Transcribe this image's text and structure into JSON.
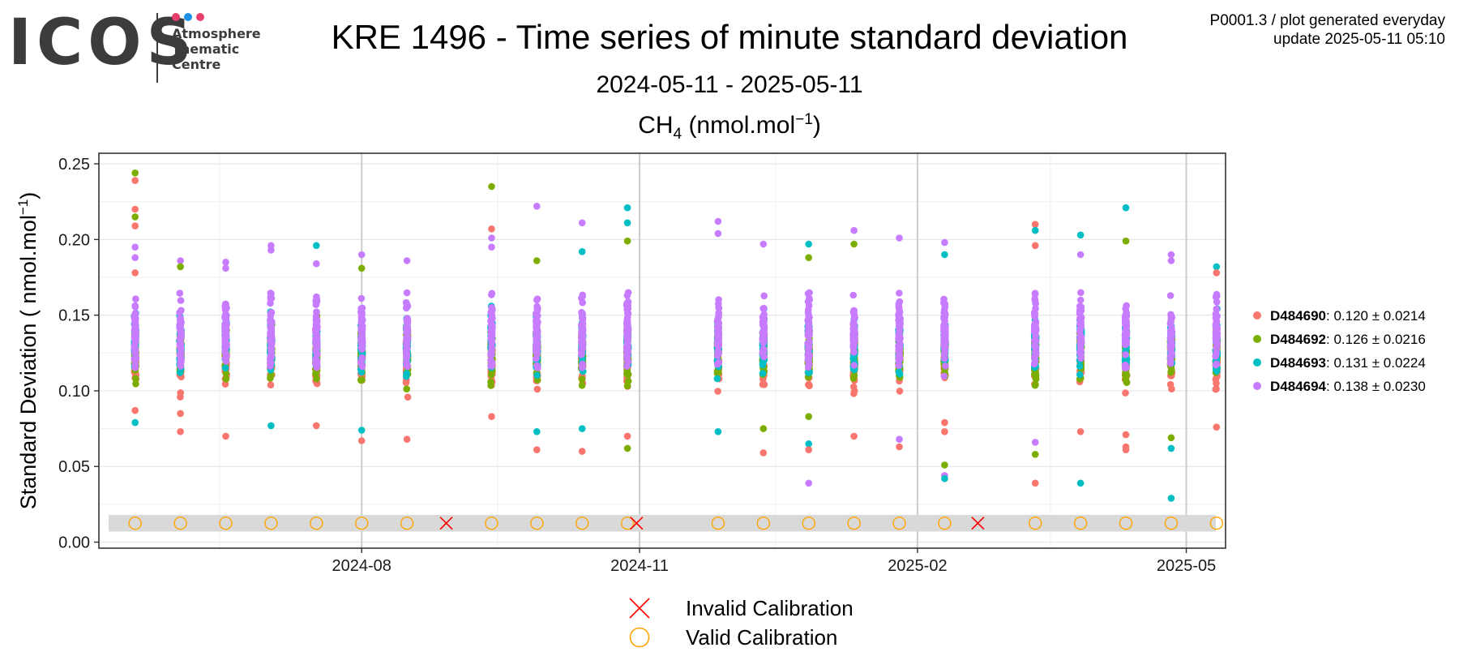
{
  "logo": {
    "text": "ICOS",
    "subtitle_lines": [
      "Atmosphere",
      "Thematic",
      "Centre"
    ],
    "dot_colors": [
      "#e83e6c",
      "#1e90e6",
      "#e83e6c"
    ]
  },
  "header": {
    "title": "KRE 1496 - Time series of minute standard deviation",
    "subtitle": "2024-05-11 - 2025-05-11",
    "gas_main": "CH",
    "gas_sub": "4",
    "gas_unit_pre": " (nmol.mol",
    "gas_unit_sup": "−1",
    "gas_unit_post": ")"
  },
  "meta": {
    "line1": "P0001.3 / plot generated everyday",
    "line2": "update  2025-05-11 05:10"
  },
  "chart_data": {
    "type": "scatter",
    "ylabel_pre": "Standard Deviation ( nmol.mol",
    "ylabel_sup": "−1",
    "ylabel_post": ")",
    "y_ticks": [
      "0.00",
      "0.05",
      "0.10",
      "0.15",
      "0.20",
      "0.25"
    ],
    "ylim": [
      -0.004,
      0.257
    ],
    "xlim": [
      "2024-05-06",
      "2025-05-14"
    ],
    "x_ticks": [
      {
        "date": "2024-08-01",
        "label": "2024-08"
      },
      {
        "date": "2024-11-01",
        "label": "2024-11"
      },
      {
        "date": "2025-02-01",
        "label": "2025-02"
      },
      {
        "date": "2025-05-01",
        "label": "2025-05"
      }
    ],
    "grid": true,
    "legend_position": "right",
    "series": [
      {
        "id": "D484690",
        "bold": "D484690",
        "stats": ": 0.120 ± 0.0214",
        "color": "#F8766D",
        "mean": 0.12,
        "sd": 0.0214
      },
      {
        "id": "D484692",
        "bold": "D484692",
        "stats": ": 0.126 ± 0.0216",
        "color": "#7CAE00",
        "mean": 0.126,
        "sd": 0.0216
      },
      {
        "id": "D484693",
        "bold": "D484693",
        "stats": ": 0.131 ± 0.0224",
        "color": "#00BFC4",
        "mean": 0.131,
        "sd": 0.0224
      },
      {
        "id": "D484694",
        "bold": "D484694",
        "stats": ": 0.138 ± 0.0230",
        "color": "#C77CFF",
        "mean": 0.138,
        "sd": 0.023
      }
    ],
    "clusters": [
      {
        "date": "2024-05-18",
        "min": 0.078,
        "max": 0.244,
        "outliers": [
          [
            0.244,
            1
          ],
          [
            0.239,
            0
          ],
          [
            0.22,
            0
          ],
          [
            0.215,
            1
          ],
          [
            0.209,
            0
          ],
          [
            0.195,
            3
          ],
          [
            0.188,
            3
          ],
          [
            0.178,
            0
          ],
          [
            0.087,
            0
          ],
          [
            0.079,
            2
          ]
        ]
      },
      {
        "date": "2024-06-02",
        "min": 0.073,
        "max": 0.186,
        "outliers": [
          [
            0.186,
            3
          ],
          [
            0.182,
            1
          ],
          [
            0.073,
            0
          ],
          [
            0.085,
            0
          ]
        ]
      },
      {
        "date": "2024-06-17",
        "min": 0.07,
        "max": 0.185,
        "outliers": [
          [
            0.185,
            3
          ],
          [
            0.181,
            3
          ],
          [
            0.07,
            0
          ]
        ]
      },
      {
        "date": "2024-07-02",
        "min": 0.077,
        "max": 0.196,
        "outliers": [
          [
            0.196,
            3
          ],
          [
            0.193,
            3
          ],
          [
            0.077,
            2
          ]
        ]
      },
      {
        "date": "2024-07-17",
        "min": 0.077,
        "max": 0.196,
        "outliers": [
          [
            0.196,
            2
          ],
          [
            0.184,
            3
          ],
          [
            0.077,
            0
          ]
        ]
      },
      {
        "date": "2024-08-01",
        "min": 0.067,
        "max": 0.19,
        "outliers": [
          [
            0.19,
            3
          ],
          [
            0.181,
            1
          ],
          [
            0.074,
            2
          ],
          [
            0.067,
            0
          ]
        ]
      },
      {
        "date": "2024-08-16",
        "min": 0.068,
        "max": 0.186,
        "outliers": [
          [
            0.186,
            3
          ],
          [
            0.068,
            0
          ]
        ]
      },
      {
        "date": "2024-09-13",
        "min": 0.082,
        "max": 0.235,
        "outliers": [
          [
            0.235,
            1
          ],
          [
            0.207,
            0
          ],
          [
            0.201,
            3
          ],
          [
            0.195,
            3
          ],
          [
            0.083,
            0
          ]
        ]
      },
      {
        "date": "2024-09-28",
        "min": 0.061,
        "max": 0.222,
        "outliers": [
          [
            0.222,
            3
          ],
          [
            0.186,
            1
          ],
          [
            0.073,
            2
          ],
          [
            0.061,
            0
          ]
        ]
      },
      {
        "date": "2024-10-13",
        "min": 0.06,
        "max": 0.211,
        "outliers": [
          [
            0.211,
            3
          ],
          [
            0.192,
            2
          ],
          [
            0.075,
            2
          ],
          [
            0.06,
            0
          ]
        ]
      },
      {
        "date": "2024-10-28",
        "min": 0.062,
        "max": 0.221,
        "outliers": [
          [
            0.221,
            2
          ],
          [
            0.211,
            2
          ],
          [
            0.199,
            1
          ],
          [
            0.07,
            0
          ],
          [
            0.062,
            1
          ]
        ]
      },
      {
        "date": "2024-11-27",
        "min": 0.073,
        "max": 0.212,
        "outliers": [
          [
            0.212,
            3
          ],
          [
            0.204,
            3
          ],
          [
            0.073,
            2
          ]
        ]
      },
      {
        "date": "2024-12-12",
        "min": 0.059,
        "max": 0.197,
        "outliers": [
          [
            0.197,
            3
          ],
          [
            0.075,
            1
          ],
          [
            0.059,
            0
          ]
        ]
      },
      {
        "date": "2024-12-27",
        "min": 0.039,
        "max": 0.197,
        "outliers": [
          [
            0.197,
            2
          ],
          [
            0.188,
            1
          ],
          [
            0.083,
            1
          ],
          [
            0.065,
            2
          ],
          [
            0.061,
            0
          ],
          [
            0.039,
            3
          ]
        ]
      },
      {
        "date": "2025-01-11",
        "min": 0.07,
        "max": 0.206,
        "outliers": [
          [
            0.206,
            3
          ],
          [
            0.197,
            1
          ],
          [
            0.07,
            0
          ]
        ]
      },
      {
        "date": "2025-01-26",
        "min": 0.063,
        "max": 0.201,
        "outliers": [
          [
            0.201,
            3
          ],
          [
            0.068,
            3
          ],
          [
            0.063,
            0
          ]
        ]
      },
      {
        "date": "2025-02-10",
        "min": 0.042,
        "max": 0.198,
        "outliers": [
          [
            0.198,
            3
          ],
          [
            0.19,
            2
          ],
          [
            0.079,
            0
          ],
          [
            0.073,
            0
          ],
          [
            0.051,
            1
          ],
          [
            0.044,
            3
          ],
          [
            0.042,
            2
          ]
        ]
      },
      {
        "date": "2025-03-12",
        "min": 0.039,
        "max": 0.21,
        "outliers": [
          [
            0.21,
            0
          ],
          [
            0.206,
            2
          ],
          [
            0.196,
            0
          ],
          [
            0.066,
            3
          ],
          [
            0.058,
            1
          ],
          [
            0.039,
            0
          ]
        ]
      },
      {
        "date": "2025-03-27",
        "min": 0.039,
        "max": 0.203,
        "outliers": [
          [
            0.203,
            2
          ],
          [
            0.19,
            3
          ],
          [
            0.073,
            0
          ],
          [
            0.039,
            2
          ]
        ]
      },
      {
        "date": "2025-04-11",
        "min": 0.061,
        "max": 0.221,
        "outliers": [
          [
            0.221,
            2
          ],
          [
            0.199,
            1
          ],
          [
            0.071,
            0
          ],
          [
            0.063,
            0
          ],
          [
            0.061,
            0
          ]
        ]
      },
      {
        "date": "2025-04-26",
        "min": 0.029,
        "max": 0.19,
        "outliers": [
          [
            0.19,
            3
          ],
          [
            0.186,
            3
          ],
          [
            0.069,
            1
          ],
          [
            0.062,
            2
          ],
          [
            0.029,
            2
          ]
        ]
      },
      {
        "date": "2025-05-11",
        "min": 0.076,
        "max": 0.182,
        "outliers": [
          [
            0.182,
            2
          ],
          [
            0.178,
            0
          ],
          [
            0.076,
            0
          ]
        ]
      }
    ],
    "calibrations": {
      "band_y": [
        0.007,
        0.018
      ],
      "marker_y": 0.0125,
      "valid_dates": [
        "2024-05-18",
        "2024-06-02",
        "2024-06-17",
        "2024-07-02",
        "2024-07-17",
        "2024-08-01",
        "2024-08-16",
        "2024-09-13",
        "2024-09-28",
        "2024-10-13",
        "2024-10-28",
        "2024-11-27",
        "2024-12-12",
        "2024-12-27",
        "2025-01-11",
        "2025-01-26",
        "2025-02-10",
        "2025-03-12",
        "2025-03-27",
        "2025-04-11",
        "2025-04-26",
        "2025-05-11"
      ],
      "invalid_dates": [
        "2024-08-29",
        "2024-10-31",
        "2025-02-21"
      ],
      "invalid_color": "#FF0000",
      "valid_color": "#FFA500"
    },
    "bottom_legend": {
      "invalid_label": "Invalid Calibration",
      "valid_label": "Valid Calibration"
    }
  }
}
